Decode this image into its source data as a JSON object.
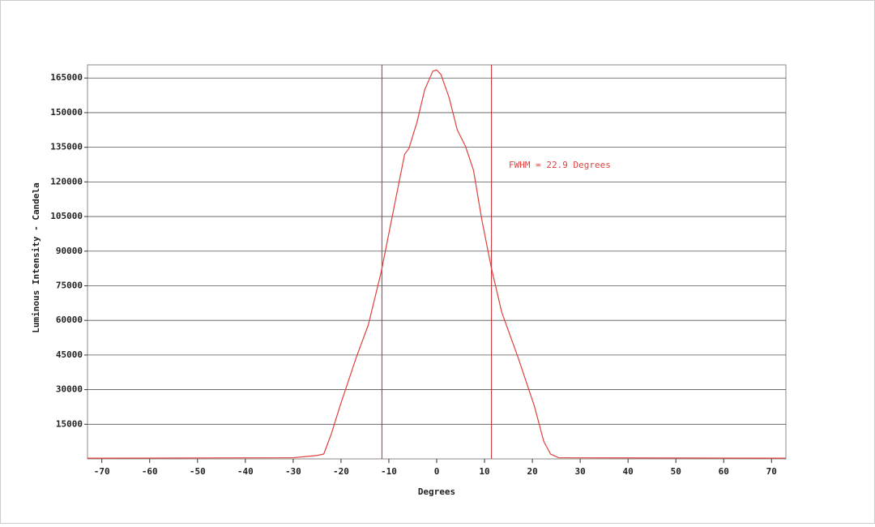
{
  "chart_data": {
    "type": "line",
    "xlabel": "Degrees",
    "ylabel": "Luminous Intensity - Candela",
    "annotation": "FWHM = 22.9 Degrees",
    "x": [
      -73,
      -30,
      -25,
      -23.6,
      -22,
      -20.2,
      -16.8,
      -14.3,
      -11.6,
      -9.2,
      -6.7,
      -5.8,
      -4.1,
      -2.5,
      -0.8,
      0,
      0.9,
      2.6,
      4.3,
      6,
      7.7,
      9.4,
      11.4,
      13.6,
      17,
      20.4,
      22.4,
      23.8,
      25.5,
      73
    ],
    "series": [
      {
        "color": "#e0403c",
        "values": [
          300,
          500,
          1500,
          2100,
          11000,
          23000,
          44000,
          58000,
          81000,
          106000,
          132000,
          134500,
          146000,
          160000,
          168000,
          168500,
          166500,
          156500,
          142500,
          135500,
          125000,
          104000,
          83000,
          63500,
          44000,
          23000,
          7500,
          2100,
          500,
          300
        ]
      }
    ],
    "fwhm_lines": [
      -11.45,
      11.45
    ],
    "fwhm_color": "#c0282c",
    "xlim": [
      -73,
      73
    ],
    "ylim": [
      0,
      170700
    ],
    "xticks": [
      -70,
      -60,
      -50,
      -40,
      -30,
      -20,
      -10,
      0,
      10,
      20,
      30,
      40,
      50,
      60,
      70
    ],
    "yticks": [
      15000,
      30000,
      45000,
      60000,
      75000,
      90000,
      105000,
      120000,
      135000,
      150000,
      165000
    ],
    "grid": true
  }
}
